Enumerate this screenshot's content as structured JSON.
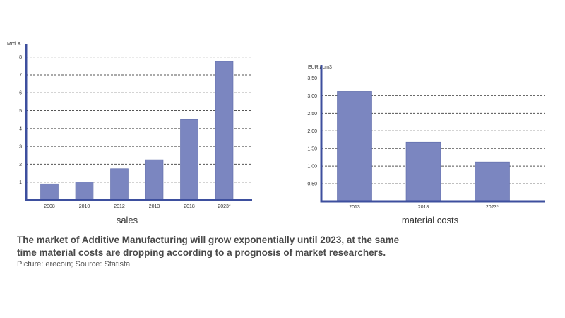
{
  "colors": {
    "bar": "#7b86c0",
    "bar_stroke": "#5c6aa8",
    "axis": "#3d4f9e",
    "grid": "#555555"
  },
  "chart_data": [
    {
      "type": "bar",
      "caption": "sales",
      "unit_label": "Mrd. €",
      "categories": [
        "2008",
        "2010",
        "2012",
        "2013",
        "2018",
        "2023*"
      ],
      "values": [
        0.9,
        1.0,
        1.75,
        2.25,
        4.5,
        7.75
      ],
      "ylim": [
        0,
        8.5
      ],
      "yticks": [
        1,
        2,
        3,
        4,
        5,
        6,
        7,
        8
      ],
      "ytick_labels": [
        "1",
        "2",
        "3",
        "4",
        "5",
        "6",
        "7",
        "8"
      ],
      "grid": true
    },
    {
      "type": "bar",
      "caption": "material costs",
      "unit_label": "EUR / cm3",
      "categories": [
        "2013",
        "2018",
        "2023*"
      ],
      "values": [
        3.12,
        1.68,
        1.12
      ],
      "ylim": [
        0,
        3.75
      ],
      "yticks": [
        0.5,
        1.0,
        1.5,
        2.0,
        2.5,
        3.0,
        3.5
      ],
      "ytick_labels": [
        "0,50",
        "1,00",
        "1,50",
        "2,00",
        "2,50",
        "3,00",
        "3,50"
      ],
      "grid": true
    }
  ],
  "caption": {
    "text": "The market of Additive Manufacturing will grow exponentially until 2023, at the same time material costs are dropping according to a prognosis of market researchers.",
    "credit": "Picture: erecoin; Source: Statista"
  }
}
